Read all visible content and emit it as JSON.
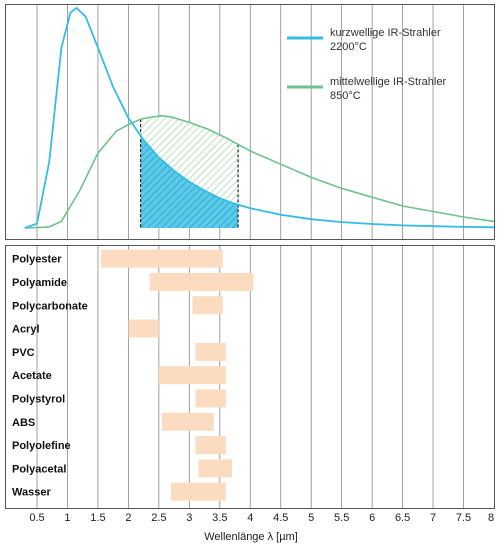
{
  "chart_data": {
    "type": "line",
    "xlabel": "Wellenlänge λ [µm]",
    "x_ticks": [
      "0.5",
      "1",
      "1.5",
      "2",
      "2.5",
      "3",
      "3.5",
      "4",
      "4.5",
      "5",
      "5.5",
      "6",
      "6.5",
      "7",
      "7.5",
      "8"
    ],
    "xlim": [
      0.3,
      8.0
    ],
    "grid": true,
    "legend_position": "top-right",
    "series": [
      {
        "name": "kurzwellige IR-Strahler 2200°C",
        "color": "#33bde6",
        "x": [
          0.3,
          0.5,
          0.7,
          0.9,
          1.05,
          1.15,
          1.3,
          1.5,
          1.75,
          2.0,
          2.25,
          2.5,
          2.75,
          3.0,
          3.25,
          3.5,
          3.75,
          4.0,
          4.5,
          5.0,
          5.5,
          6.0,
          6.5,
          7.0,
          7.5,
          8.0
        ],
        "y": [
          0,
          0.02,
          0.3,
          0.82,
          0.98,
          1.0,
          0.96,
          0.82,
          0.64,
          0.5,
          0.4,
          0.32,
          0.26,
          0.21,
          0.17,
          0.135,
          0.11,
          0.09,
          0.06,
          0.04,
          0.027,
          0.018,
          0.012,
          0.008,
          0.005,
          0.003
        ]
      },
      {
        "name": "mittelwellige IR-Strahler 850°C",
        "color": "#6cc38e",
        "x": [
          0.3,
          0.7,
          0.9,
          1.2,
          1.5,
          1.8,
          2.0,
          2.2,
          2.4,
          2.55,
          2.7,
          3.0,
          3.3,
          3.6,
          3.8,
          4.0,
          4.5,
          5.0,
          5.5,
          6.0,
          6.5,
          7.0,
          7.5,
          8.0
        ],
        "y": [
          0,
          0.005,
          0.03,
          0.17,
          0.34,
          0.44,
          0.47,
          0.495,
          0.505,
          0.51,
          0.505,
          0.48,
          0.45,
          0.41,
          0.38,
          0.35,
          0.29,
          0.23,
          0.18,
          0.14,
          0.1,
          0.075,
          0.05,
          0.03
        ]
      }
    ],
    "highlight_range": [
      2.2,
      3.8
    ],
    "materials": [
      {
        "name": "Polyester",
        "range": [
          1.55,
          3.55
        ]
      },
      {
        "name": "Polyamide",
        "range": [
          2.35,
          4.05
        ]
      },
      {
        "name": "Polycarbonate",
        "range": [
          3.05,
          3.55
        ]
      },
      {
        "name": "Acryl",
        "range": [
          2.0,
          2.5
        ]
      },
      {
        "name": "PVC",
        "range": [
          3.1,
          3.6
        ]
      },
      {
        "name": "Acetate",
        "range": [
          2.5,
          3.6
        ]
      },
      {
        "name": "Polystyrol",
        "range": [
          3.1,
          3.6
        ]
      },
      {
        "name": "ABS",
        "range": [
          2.55,
          3.4
        ]
      },
      {
        "name": "Polyolefine",
        "range": [
          3.1,
          3.6
        ]
      },
      {
        "name": "Polyacetal",
        "range": [
          3.15,
          3.7
        ]
      },
      {
        "name": "Wasser",
        "range": [
          2.7,
          3.6
        ]
      }
    ],
    "bar_color": "#fbdcc0"
  },
  "legend": {
    "kurz_line1": "kurzwellige IR-Strahler",
    "kurz_line2": "2200°C",
    "mittel_line1": "mittelwellige IR-Strahler",
    "mittel_line2": "850°C"
  }
}
